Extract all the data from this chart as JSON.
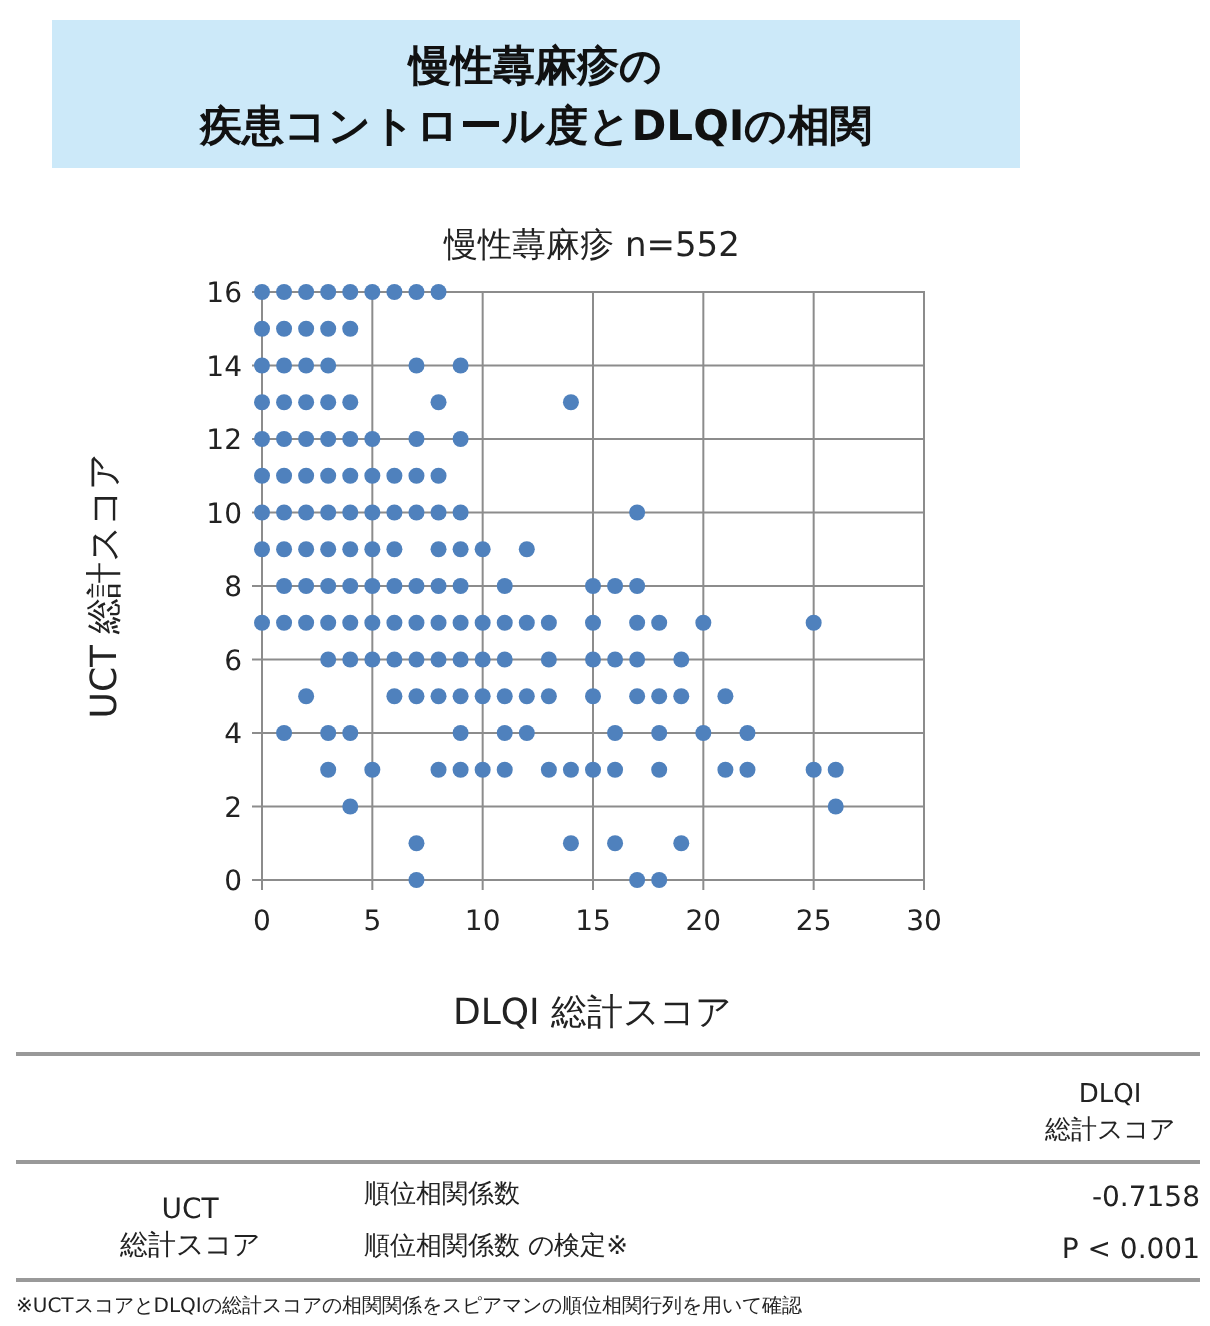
{
  "chart_data": {
    "type": "scatter",
    "title": "慢性蕁麻疹の疾患コントロール度とDLQIの相関",
    "subtitle": "慢性蕁麻疹 n=552",
    "xlabel": "DLQI 総計スコア",
    "ylabel": "UCT 総計スコア",
    "xlim": [
      0,
      30
    ],
    "xticks": [
      0,
      5,
      10,
      15,
      20,
      25,
      30
    ],
    "ylim": [
      0,
      16
    ],
    "yticks": [
      0,
      2,
      4,
      6,
      8,
      10,
      12,
      14,
      16
    ],
    "grid": true,
    "marker": "circle",
    "series": [
      {
        "color": "#4f81bd",
        "x": [
          0,
          1,
          2,
          3,
          4,
          5,
          6,
          7,
          8,
          0,
          1,
          2,
          3,
          4,
          0,
          1,
          2,
          3,
          7,
          9,
          0,
          1,
          2,
          3,
          4,
          8,
          14,
          0,
          1,
          2,
          3,
          4,
          5,
          7,
          9,
          0,
          1,
          2,
          3,
          4,
          5,
          6,
          7,
          8,
          0,
          1,
          2,
          3,
          4,
          5,
          6,
          7,
          8,
          9,
          17,
          0,
          1,
          2,
          3,
          4,
          5,
          6,
          8,
          9,
          10,
          12,
          1,
          2,
          3,
          4,
          5,
          6,
          7,
          8,
          9,
          11,
          15,
          16,
          17,
          0,
          1,
          2,
          3,
          4,
          5,
          6,
          7,
          8,
          9,
          10,
          11,
          12,
          13,
          15,
          17,
          18,
          20,
          25,
          3,
          4,
          5,
          6,
          7,
          8,
          9,
          10,
          11,
          13,
          15,
          16,
          17,
          19,
          2,
          6,
          7,
          8,
          9,
          10,
          11,
          12,
          13,
          15,
          17,
          18,
          19,
          21,
          1,
          3,
          4,
          9,
          11,
          12,
          16,
          18,
          20,
          22,
          3,
          5,
          8,
          9,
          10,
          11,
          13,
          14,
          15,
          16,
          18,
          21,
          22,
          25,
          26,
          4,
          26,
          7,
          14,
          16,
          19,
          7,
          17,
          18
        ],
        "values": [
          16,
          16,
          16,
          16,
          16,
          16,
          16,
          16,
          16,
          15,
          15,
          15,
          15,
          15,
          14,
          14,
          14,
          14,
          14,
          14,
          13,
          13,
          13,
          13,
          13,
          13,
          13,
          12,
          12,
          12,
          12,
          12,
          12,
          12,
          12,
          11,
          11,
          11,
          11,
          11,
          11,
          11,
          11,
          11,
          10,
          10,
          10,
          10,
          10,
          10,
          10,
          10,
          10,
          10,
          10,
          9,
          9,
          9,
          9,
          9,
          9,
          9,
          9,
          9,
          9,
          9,
          8,
          8,
          8,
          8,
          8,
          8,
          8,
          8,
          8,
          8,
          8,
          8,
          8,
          7,
          7,
          7,
          7,
          7,
          7,
          7,
          7,
          7,
          7,
          7,
          7,
          7,
          7,
          7,
          7,
          7,
          7,
          7,
          6,
          6,
          6,
          6,
          6,
          6,
          6,
          6,
          6,
          6,
          6,
          6,
          6,
          6,
          5,
          5,
          5,
          5,
          5,
          5,
          5,
          5,
          5,
          5,
          5,
          5,
          5,
          5,
          4,
          4,
          4,
          4,
          4,
          4,
          4,
          4,
          4,
          4,
          3,
          3,
          3,
          3,
          3,
          3,
          3,
          3,
          3,
          3,
          3,
          3,
          3,
          3,
          3,
          2,
          2,
          1,
          1,
          1,
          1,
          0,
          0,
          0
        ]
      }
    ],
    "annotations": [
      "DLQI\n総計スコア",
      "UCT\n総計スコア",
      "順位相関係数",
      "-0.7158",
      "順位相関係数 の検定※",
      "P < 0.001",
      "※UCTスコアとDLQIの総計スコアの相関関係をスピアマンの順位相関行列を用いて確認"
    ]
  }
}
